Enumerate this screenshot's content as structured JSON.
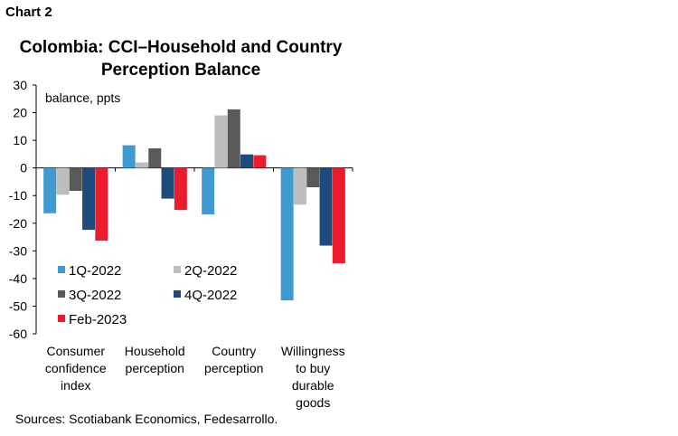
{
  "figure_label": "Chart 2",
  "source": "Sources: Scotiabank Economics, Fedesarrollo.",
  "chart_data": {
    "type": "bar",
    "title": "Colombia: CCI–Household and Country Perception Balance",
    "ylabel": "balance, ppts",
    "xlabel": "",
    "ylim": [
      -60,
      30
    ],
    "yticks": [
      30,
      20,
      10,
      0,
      -10,
      -20,
      -30,
      -40,
      -50,
      -60
    ],
    "grid": false,
    "legend_position": "bottom-left, inside",
    "categories": [
      [
        "Consumer",
        "confidence",
        "index"
      ],
      [
        "Household",
        "perception"
      ],
      [
        "Country",
        "perception"
      ],
      [
        "Willingness",
        "to buy",
        "durable",
        "goods"
      ]
    ],
    "series": [
      {
        "name": "1Q-2022",
        "color": "#3f9bcf",
        "values": [
          -16.4,
          8.2,
          -16.8,
          -47.9
        ]
      },
      {
        "name": "2Q-2022",
        "color": "#bdbdbd",
        "values": [
          -9.7,
          2.0,
          19.0,
          -13.3
        ]
      },
      {
        "name": "3Q-2022",
        "color": "#595959",
        "values": [
          -8.3,
          7.1,
          21.2,
          -7.0
        ]
      },
      {
        "name": "4Q-2022",
        "color": "#1f4a7c",
        "values": [
          -22.4,
          -11.1,
          4.9,
          -28.1
        ]
      },
      {
        "name": "Feb-2023",
        "color": "#ec1c2e",
        "values": [
          -26.3,
          -15.2,
          4.6,
          -34.5
        ]
      }
    ]
  }
}
